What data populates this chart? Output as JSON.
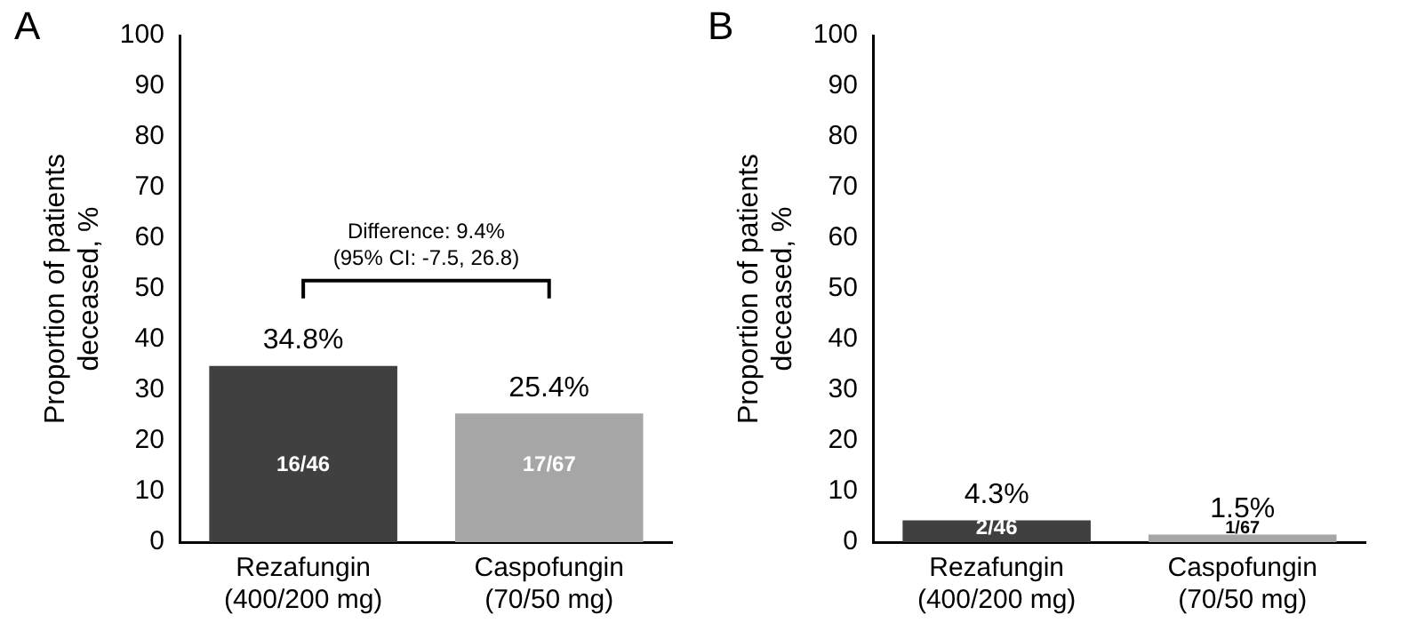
{
  "chart_data": [
    {
      "type": "bar",
      "title": "A",
      "ylabel": "Proportion of patients deceased, %",
      "categories": [
        "Rezafungin\n(400/200 mg)",
        "Caspofungin\n(70/50 mg)"
      ],
      "values": [
        34.8,
        25.4
      ],
      "colors": [
        "#404040",
        "#a6a6a6"
      ],
      "value_labels": [
        "34.8%",
        "25.4%"
      ],
      "ylim": [
        0,
        100
      ],
      "yticks": [
        0,
        10,
        20,
        30,
        40,
        50,
        60,
        70,
        80,
        90,
        100
      ],
      "grid": false,
      "legend": false,
      "annotations": [
        "Difference: 9.4%\n(95% CI: -7.5, 26.8)",
        "16/46",
        "17/67"
      ]
    },
    {
      "type": "bar",
      "title": "B",
      "ylabel": "Proportion of patients deceased, %",
      "categories": [
        "Rezafungin\n(400/200 mg)",
        "Caspofungin\n(70/50 mg)"
      ],
      "values": [
        4.3,
        1.5
      ],
      "colors": [
        "#404040",
        "#a6a6a6"
      ],
      "value_labels": [
        "4.3%",
        "1.5%"
      ],
      "ylim": [
        0,
        100
      ],
      "yticks": [
        0,
        10,
        20,
        30,
        40,
        50,
        60,
        70,
        80,
        90,
        100
      ],
      "grid": false,
      "legend": false,
      "annotations": [
        "2/46",
        "1/67"
      ]
    }
  ]
}
